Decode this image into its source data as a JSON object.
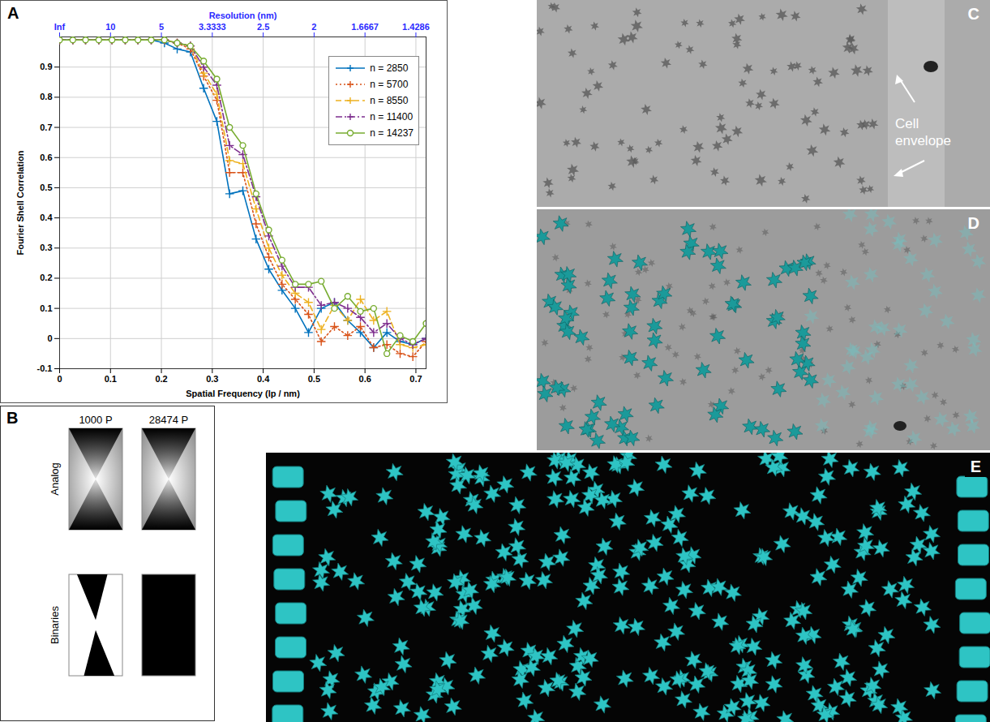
{
  "chart_data": {
    "type": "line",
    "xlabel": "Spatial Frequency (lp / nm)",
    "ylabel": "Fourier Shell Correlation",
    "x2label": "Resolution (nm)",
    "xlim": [
      0,
      0.72
    ],
    "xticks": [
      0,
      0.1,
      0.2,
      0.3,
      0.4,
      0.5,
      0.6,
      0.7
    ],
    "x2ticks": [
      {
        "value": 0,
        "label": "Inf"
      },
      {
        "value": 0.1,
        "label": "10"
      },
      {
        "value": 0.2,
        "label": "5"
      },
      {
        "value": 0.3,
        "label": "3.3333"
      },
      {
        "value": 0.4,
        "label": "2.5"
      },
      {
        "value": 0.5,
        "label": "2"
      },
      {
        "value": 0.6,
        "label": "1.6667"
      },
      {
        "value": 0.7,
        "label": "1.4286"
      }
    ],
    "ylim": [
      -0.1,
      1
    ],
    "yticks": [
      -0.1,
      0,
      0.1,
      0.2,
      0.3,
      0.4,
      0.5,
      0.6,
      0.7,
      0.8,
      0.9
    ],
    "grid": true,
    "legend": "upper right",
    "x": [
      0,
      0.026,
      0.051,
      0.077,
      0.103,
      0.129,
      0.154,
      0.18,
      0.206,
      0.231,
      0.257,
      0.283,
      0.309,
      0.334,
      0.36,
      0.386,
      0.411,
      0.437,
      0.463,
      0.489,
      0.514,
      0.54,
      0.566,
      0.591,
      0.617,
      0.643,
      0.669,
      0.694,
      0.72
    ],
    "series": [
      {
        "name": "n = 2850",
        "color": "#0072bd",
        "marker": "plus",
        "line_style": "solid",
        "values": [
          0.99,
          0.99,
          0.99,
          0.99,
          0.99,
          0.99,
          0.99,
          0.99,
          0.98,
          0.96,
          0.95,
          0.83,
          0.72,
          0.48,
          0.49,
          0.33,
          0.23,
          0.16,
          0.1,
          0.02,
          0.1,
          0.12,
          0.06,
          0.02,
          -0.03,
          0.02,
          -0.01,
          -0.02,
          0
        ]
      },
      {
        "name": "n = 5700",
        "color": "#d95319",
        "marker": "plus",
        "line_style": "dotted",
        "values": [
          0.99,
          0.99,
          0.99,
          0.99,
          0.99,
          0.99,
          0.99,
          0.99,
          0.99,
          0.98,
          0.96,
          0.87,
          0.79,
          0.55,
          0.55,
          0.38,
          0.27,
          0.18,
          0.13,
          0.08,
          -0.01,
          0.04,
          0.01,
          0.04,
          -0.03,
          -0.02,
          -0.05,
          -0.06,
          -0.01
        ]
      },
      {
        "name": "n = 8550",
        "color": "#edb120",
        "marker": "plus",
        "line_style": "dashed",
        "values": [
          0.99,
          0.99,
          0.99,
          0.99,
          0.99,
          0.99,
          0.99,
          0.99,
          0.99,
          0.98,
          0.97,
          0.88,
          0.81,
          0.59,
          0.58,
          0.43,
          0.3,
          0.21,
          0.15,
          0.12,
          0.03,
          0.11,
          0.06,
          0.13,
          0.06,
          0.09,
          -0.02,
          -0.03,
          -0.02
        ]
      },
      {
        "name": "n = 11400",
        "color": "#7e2f8e",
        "marker": "plus",
        "line_style": "dashdot",
        "values": [
          0.99,
          0.99,
          0.99,
          0.99,
          0.99,
          0.99,
          0.99,
          0.99,
          0.99,
          0.98,
          0.97,
          0.9,
          0.84,
          0.64,
          0.61,
          0.47,
          0.34,
          0.24,
          0.17,
          0.17,
          0.11,
          0.12,
          0.1,
          0.07,
          0.02,
          0.05,
          0,
          -0.02,
          0
        ]
      },
      {
        "name": "n = 14237",
        "color": "#77ac30",
        "marker": "circle",
        "line_style": "solid",
        "values": [
          0.99,
          0.99,
          0.99,
          0.99,
          0.99,
          0.99,
          0.99,
          0.99,
          0.99,
          0.98,
          0.97,
          0.92,
          0.86,
          0.7,
          0.64,
          0.48,
          0.36,
          0.26,
          0.18,
          0.18,
          0.19,
          0.1,
          0.14,
          0.09,
          0.1,
          -0.05,
          0.01,
          -0.01,
          0.05
        ]
      }
    ]
  },
  "figure": {
    "panels": [
      {
        "label": "A"
      },
      {
        "label": "B",
        "column_heads": [
          "1000 P",
          "28474 P"
        ],
        "row_labels": [
          "Analog",
          "Binaries"
        ]
      },
      {
        "label": "C",
        "annotation": "Cell envelope"
      },
      {
        "label": "D"
      },
      {
        "label": "E"
      }
    ]
  }
}
